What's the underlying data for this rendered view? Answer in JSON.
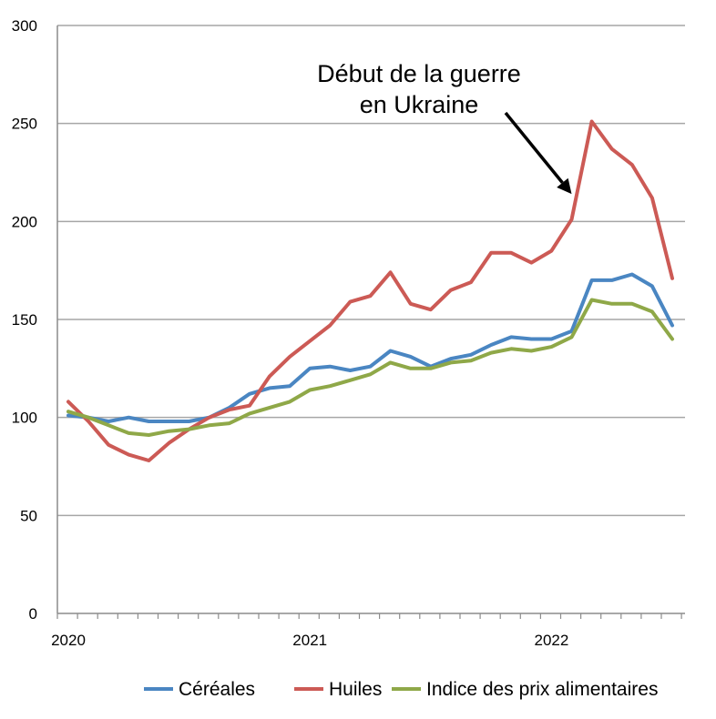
{
  "chart_data": {
    "type": "line",
    "x": [
      "2020-01",
      "2020-02",
      "2020-03",
      "2020-04",
      "2020-05",
      "2020-06",
      "2020-07",
      "2020-08",
      "2020-09",
      "2020-10",
      "2020-11",
      "2020-12",
      "2021-01",
      "2021-02",
      "2021-03",
      "2021-04",
      "2021-05",
      "2021-06",
      "2021-07",
      "2021-08",
      "2021-09",
      "2021-10",
      "2021-11",
      "2021-12",
      "2022-01",
      "2022-02",
      "2022-03",
      "2022-04",
      "2022-05",
      "2022-06",
      "2022-07"
    ],
    "x_tick_labels": [
      {
        "value": "2020-01",
        "label": "2020"
      },
      {
        "value": "2021-01",
        "label": "2021"
      },
      {
        "value": "2022-01",
        "label": "2022"
      }
    ],
    "ylim": [
      0,
      300
    ],
    "y_ticks": [
      0,
      50,
      100,
      150,
      200,
      250,
      300
    ],
    "grid": true,
    "legend_position": "bottom",
    "series": [
      {
        "name": "Céréales",
        "color": "#4a86c2",
        "values": [
          101,
          100,
          98,
          100,
          98,
          98,
          98,
          100,
          105,
          112,
          115,
          116,
          125,
          126,
          124,
          126,
          134,
          131,
          126,
          130,
          132,
          137,
          141,
          140,
          140,
          144,
          170,
          170,
          173,
          167,
          147
        ]
      },
      {
        "name": "Huiles",
        "color": "#cc5a55",
        "values": [
          108,
          98,
          86,
          81,
          78,
          87,
          94,
          100,
          104,
          106,
          121,
          131,
          139,
          147,
          159,
          162,
          174,
          158,
          155,
          165,
          169,
          184,
          184,
          179,
          185,
          201,
          251,
          237,
          229,
          212,
          171
        ]
      },
      {
        "name": "Indice des prix alimentaires",
        "color": "#8fa848",
        "values": [
          103,
          100,
          96,
          92,
          91,
          93,
          94,
          96,
          97,
          102,
          105,
          108,
          114,
          116,
          119,
          122,
          128,
          125,
          125,
          128,
          129,
          133,
          135,
          134,
          136,
          141,
          160,
          158,
          158,
          154,
          140
        ]
      }
    ],
    "annotation": {
      "lines": [
        "Début de la guerre",
        "en Ukraine"
      ],
      "target_x": "2022-02",
      "target_y": 214
    }
  }
}
